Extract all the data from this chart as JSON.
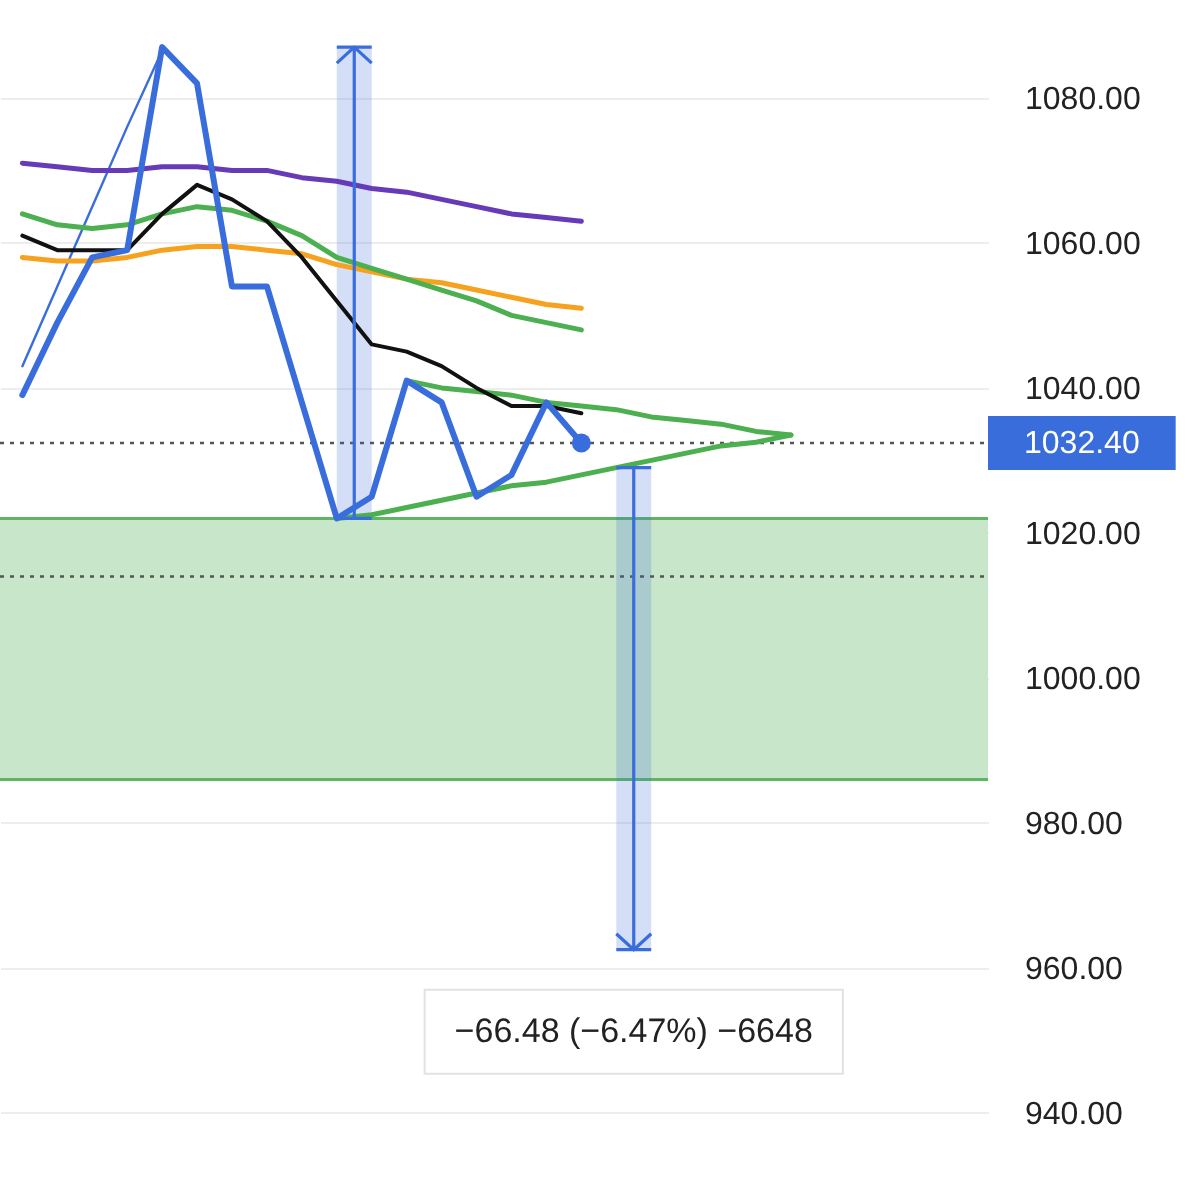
{
  "chart_data": {
    "type": "line",
    "categories": [
      null,
      null,
      null,
      null,
      null,
      null,
      null,
      null,
      null,
      null,
      null,
      null,
      null,
      null,
      null,
      null,
      null,
      null,
      null,
      null,
      null,
      null,
      null,
      null,
      null,
      null,
      null,
      null
    ],
    "series": [
      {
        "color": "#3a6ddc",
        "values": [
          1039,
          1049,
          1058,
          1059,
          1087,
          1082,
          1054,
          1054,
          1038,
          1022,
          1025,
          1041,
          1038,
          1025,
          1028,
          1038,
          1032.4,
          null,
          null,
          null,
          null,
          null,
          null,
          null,
          null,
          null,
          null,
          null
        ]
      },
      {
        "color": "#111111",
        "values": [
          1061,
          1059,
          1059,
          1059,
          1064,
          1068,
          1066,
          1063,
          1058,
          1052,
          1046,
          1045,
          1043,
          1040,
          1037.5,
          1037.5,
          1036.5,
          null,
          null,
          null,
          null,
          null,
          null,
          null,
          null,
          null,
          null,
          null
        ]
      },
      {
        "color": "#673ab7",
        "values": [
          1071,
          1070.5,
          1070,
          1070,
          1070.5,
          1070.5,
          1070,
          1070,
          1069,
          1068.5,
          1067.5,
          1067,
          1066,
          1065,
          1064,
          1063.5,
          1063,
          null,
          null,
          null,
          null,
          null,
          null,
          null,
          null,
          null,
          null,
          null
        ]
      },
      {
        "color": "#4caf50",
        "values": [
          1064,
          1062.5,
          1062,
          1062.5,
          1064,
          1065,
          1064.5,
          1063,
          1061,
          1058,
          1056.5,
          1055,
          1053.5,
          1052,
          1050,
          1049,
          1048,
          null,
          null,
          null,
          null,
          null,
          null,
          null,
          null,
          null,
          null,
          null
        ]
      },
      {
        "color": "#f6a21e",
        "values": [
          1058,
          1057.5,
          1057.5,
          1058,
          1059,
          1059.5,
          1059.5,
          1059,
          1058.5,
          1057,
          1056,
          1055,
          1054.5,
          1053.5,
          1052.5,
          1051.5,
          1051,
          null,
          null,
          null,
          null,
          null,
          null,
          null,
          null,
          null,
          null,
          null
        ]
      },
      {
        "color": "#4caf50",
        "values": [
          null,
          null,
          null,
          null,
          null,
          null,
          null,
          null,
          null,
          null,
          null,
          1041,
          1040,
          1039.5,
          1039,
          1038,
          1037.5,
          1037,
          1036,
          1035.5,
          1035,
          1034,
          1033.5,
          null,
          null,
          null,
          null,
          null
        ]
      },
      {
        "color": "#4caf50",
        "values": [
          null,
          null,
          null,
          null,
          null,
          null,
          null,
          null,
          null,
          1022,
          1022.5,
          1023.5,
          1024.5,
          1025.5,
          1026.5,
          1027,
          1028,
          1029,
          1030,
          1031,
          1032,
          1032.5,
          1033.5,
          null,
          null,
          null,
          null,
          null
        ]
      },
      {
        "color": "#3a6ddc",
        "values": [
          1043,
          1054,
          1065,
          1076,
          1086.5,
          null,
          null,
          null,
          null,
          null,
          null,
          null,
          null,
          null,
          null,
          null,
          null,
          null,
          null,
          null,
          null,
          null,
          null,
          null,
          null,
          null,
          null,
          null
        ]
      },
      {
        "type": "bar",
        "color": "#3a6ddc",
        "values": [
          null,
          null,
          null,
          null,
          null,
          null,
          null,
          null,
          null,
          65,
          null,
          null,
          null,
          null,
          null,
          null,
          null,
          -66.48,
          null,
          null,
          null,
          null,
          null,
          null,
          null,
          null,
          null,
          null
        ],
        "base": [
          null,
          null,
          null,
          null,
          null,
          null,
          null,
          null,
          null,
          1022,
          null,
          null,
          null,
          null,
          null,
          null,
          null,
          1029,
          null,
          null,
          null,
          null,
          null,
          null,
          null,
          null,
          null,
          null
        ],
        "value_labels": [
          null,
          null,
          null,
          null,
          null,
          null,
          null,
          null,
          null,
          null,
          null,
          null,
          null,
          null,
          null,
          null,
          null,
          "−66.48 (−6.47%) −6648",
          null,
          null,
          null,
          null,
          null,
          null,
          null,
          null,
          null,
          null
        ]
      },
      {
        "type": "scatter",
        "color": "#3a6ddc",
        "values": [
          null,
          null,
          null,
          null,
          null,
          null,
          null,
          null,
          null,
          null,
          null,
          null,
          null,
          null,
          null,
          null,
          1032.4,
          null,
          null,
          null,
          null,
          null,
          null,
          null,
          null,
          null,
          null,
          null
        ]
      }
    ],
    "ylim": [
      928,
      1093.5
    ],
    "yticks": [
      {
        "value": 940,
        "label": "940.00"
      },
      {
        "value": 960,
        "label": "960.00"
      },
      {
        "value": 980,
        "label": "980.00"
      },
      {
        "value": 1000,
        "label": "1000.00"
      },
      {
        "value": 1020,
        "label": "1020.00"
      },
      {
        "value": 1040,
        "label": "1040.00"
      },
      {
        "value": 1060,
        "label": "1060.00"
      },
      {
        "value": 1080,
        "label": "1080.00"
      }
    ],
    "ref_lines": [
      {
        "axis": "y",
        "value": 1032.4,
        "label": "1032.40",
        "line_style": "dotted"
      },
      {
        "axis": "y",
        "value": 1014,
        "line_style": "dotted"
      }
    ],
    "bands": [
      {
        "axis": "y",
        "from": 986,
        "to": 1022,
        "color": "#c8e6c9"
      }
    ],
    "grid": "y",
    "tick_labels": "y"
  }
}
